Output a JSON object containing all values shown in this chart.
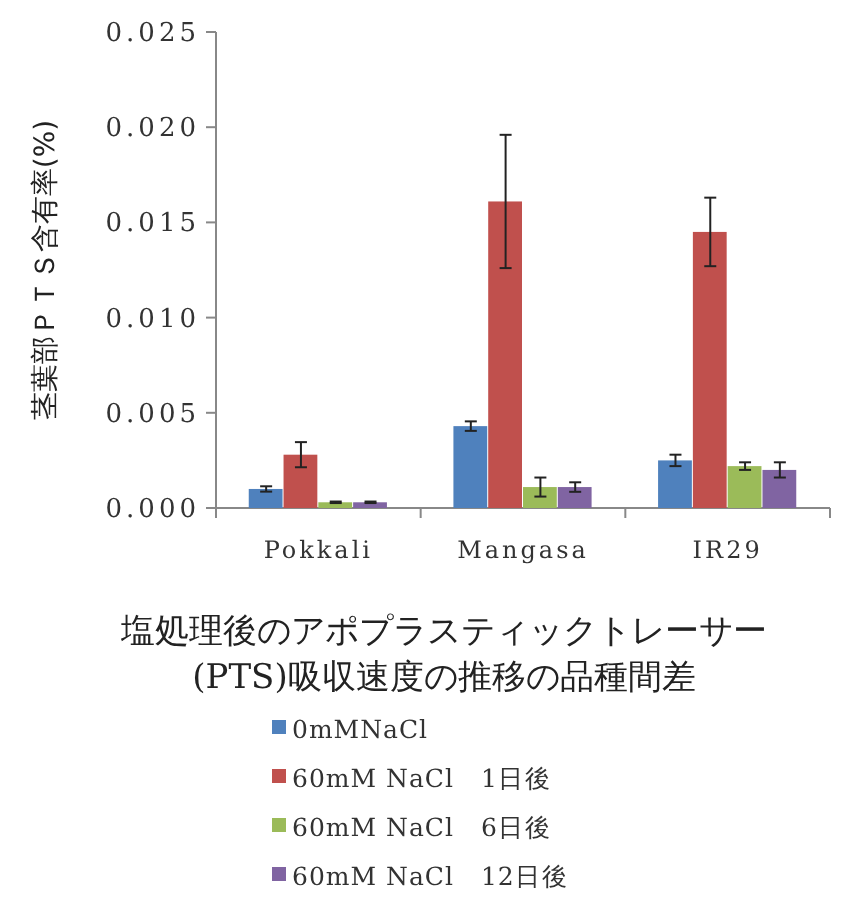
{
  "chart_data": {
    "type": "bar",
    "title": "塩処理後のアポプラスティックトレーサー\n(PTS)吸収速度の推移の品種間差",
    "ylabel": "茎葉部ＰＴＳ含有率(%)",
    "categories": [
      "Pokkali",
      "Mangasa",
      "IR29"
    ],
    "series": [
      {
        "name": "0mMNaCl",
        "color": "#4f81bd",
        "values": [
          0.001,
          0.0043,
          0.0025
        ],
        "errors": [
          0.00014,
          0.00025,
          0.0003
        ]
      },
      {
        "name": "60mM NaCl　1日後",
        "color": "#c0504d",
        "values": [
          0.0028,
          0.0161,
          0.0145
        ],
        "errors": [
          0.00066,
          0.0035,
          0.0018
        ]
      },
      {
        "name": "60mM NaCl　6日後",
        "color": "#9bbb59",
        "values": [
          0.0003,
          0.0011,
          0.0022
        ],
        "errors": [
          4e-05,
          0.0005,
          0.0002
        ]
      },
      {
        "name": "60mM NaCl　12日後",
        "color": "#8064a2",
        "values": [
          0.0003,
          0.0011,
          0.002
        ],
        "errors": [
          4e-05,
          0.00025,
          0.0004
        ]
      }
    ],
    "ylim": [
      0,
      0.025
    ],
    "yticks": [
      {
        "value": 0,
        "label": "0.000"
      },
      {
        "value": 0.005,
        "label": "0.005"
      },
      {
        "value": 0.01,
        "label": "0.010"
      },
      {
        "value": 0.015,
        "label": "0.015"
      },
      {
        "value": 0.02,
        "label": "0.020"
      },
      {
        "value": 0.025,
        "label": "0.025"
      }
    ],
    "grid": false,
    "legend": "bottom"
  }
}
